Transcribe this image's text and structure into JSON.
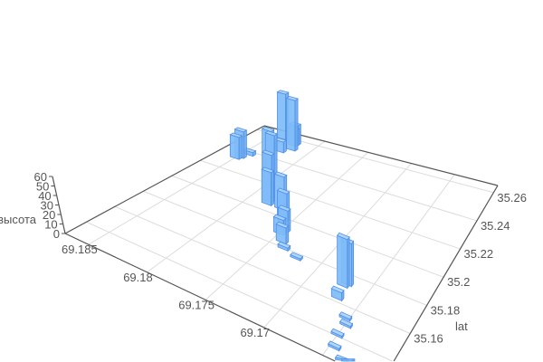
{
  "chart_data": {
    "type": "bar3d",
    "title": "",
    "x_axis": {
      "name": "",
      "range": [
        69.16,
        69.187
      ],
      "grid_ticks": [
        69.16,
        69.165,
        69.17,
        69.175,
        69.18,
        69.185
      ],
      "tick_labels": [
        "69.185",
        "69.18",
        "69.175",
        "69.17"
      ],
      "tick_values": [
        69.185,
        69.18,
        69.175,
        69.17
      ]
    },
    "y_axis": {
      "name": "lat",
      "range": [
        35.125,
        35.265
      ],
      "grid_ticks": [
        35.14,
        35.16,
        35.18,
        35.2,
        35.22,
        35.24,
        35.26
      ],
      "tick_labels": [
        "35.16",
        "35.18",
        "35.2",
        "35.22",
        "35.24",
        "35.26"
      ],
      "tick_values": [
        35.16,
        35.18,
        35.2,
        35.22,
        35.24,
        35.26
      ]
    },
    "z_axis": {
      "name": "высота",
      "range": [
        0,
        60
      ],
      "tick_labels": [
        "0",
        "10",
        "20",
        "30",
        "40",
        "50",
        "60"
      ],
      "tick_values": [
        0,
        10,
        20,
        30,
        40,
        50,
        60
      ]
    },
    "grid": true,
    "bar_color": "#7fbcf9",
    "bar_edge_color": "#4f8fe6",
    "points": [
      {
        "lon": 69.1839,
        "lat": 35.259,
        "h": 52
      },
      {
        "lon": 69.1818,
        "lat": 35.252,
        "h": 57
      },
      {
        "lon": 69.1822,
        "lat": 35.257,
        "h": 22
      },
      {
        "lon": 69.1822,
        "lat": 35.256,
        "h": 18
      },
      {
        "lon": 69.1825,
        "lat": 35.248,
        "h": 12
      },
      {
        "lon": 69.1848,
        "lat": 35.234,
        "h": 30
      },
      {
        "lon": 69.185,
        "lat": 35.232,
        "h": 25
      },
      {
        "lon": 69.1844,
        "lat": 35.238,
        "h": 4
      },
      {
        "lon": 69.1809,
        "lat": 35.227,
        "h": 50
      },
      {
        "lon": 69.1807,
        "lat": 35.228,
        "h": 45
      },
      {
        "lon": 69.1784,
        "lat": 35.208,
        "h": 52
      },
      {
        "lon": 69.1782,
        "lat": 35.206,
        "h": 36
      },
      {
        "lon": 69.1769,
        "lat": 35.206,
        "h": 36
      },
      {
        "lon": 69.1758,
        "lat": 35.199,
        "h": 30
      },
      {
        "lon": 69.1749,
        "lat": 35.192,
        "h": 23
      },
      {
        "lon": 69.175,
        "lat": 35.189,
        "h": 16
      },
      {
        "lon": 69.1742,
        "lat": 35.184,
        "h": 17
      },
      {
        "lon": 69.1736,
        "lat": 35.18,
        "h": 3
      },
      {
        "lon": 69.1721,
        "lat": 35.177,
        "h": 2
      },
      {
        "lon": 69.1672,
        "lat": 35.172,
        "h": 50
      },
      {
        "lon": 69.167,
        "lat": 35.174,
        "h": 44
      },
      {
        "lon": 69.1669,
        "lat": 35.163,
        "h": 8
      },
      {
        "lon": 69.1653,
        "lat": 35.153,
        "h": 2
      },
      {
        "lon": 69.1649,
        "lat": 35.149,
        "h": 2
      },
      {
        "lon": 69.165,
        "lat": 35.141,
        "h": 2
      },
      {
        "lon": 69.1646,
        "lat": 35.133,
        "h": 2
      },
      {
        "lon": 69.1635,
        "lat": 35.127,
        "h": 2
      },
      {
        "lon": 69.1628,
        "lat": 35.125,
        "h": 2
      }
    ]
  }
}
